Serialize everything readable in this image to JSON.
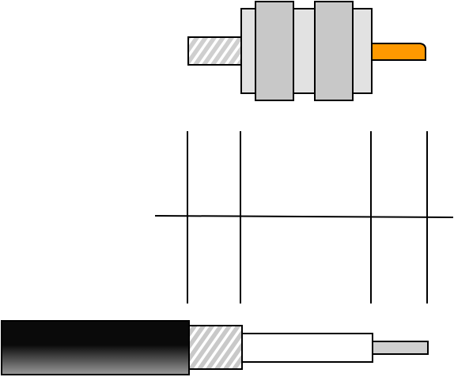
{
  "diagram": {
    "type": "coax-connector-strip-length-guide",
    "components": {
      "connector": [
        "thread-sleeve",
        "body",
        "nut-front",
        "nut-rear",
        "center-pin"
      ],
      "cable": [
        "outer-jacket",
        "braid-shield",
        "dielectric",
        "center-conductor"
      ]
    },
    "colors": {
      "outline": "#000000",
      "background": "#ffffff",
      "connector_body": "#e2e2e2",
      "connector_nut": "#c8c8c8",
      "thread_fill": "#cfcfcf",
      "thread_stripe": "#ffffff",
      "center_pin": "#ff9900",
      "jacket_dark": "#0a0a0a",
      "jacket_light": "#9a9a9a",
      "braid_fill": "#c9c9c9",
      "dielectric": "#ffffff",
      "conductor": "#d0d0d0"
    }
  }
}
